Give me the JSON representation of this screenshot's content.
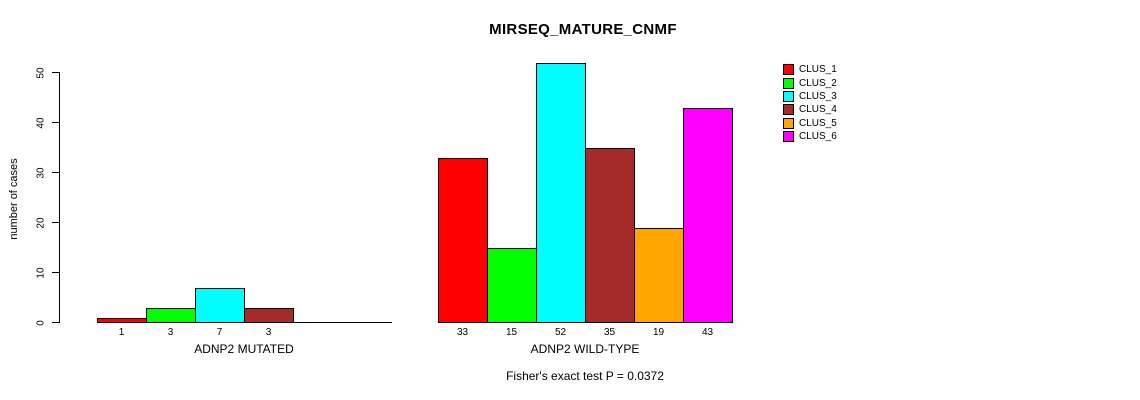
{
  "title": "MIRSEQ_MATURE_CNMF",
  "subtitle": "Fisher's exact test P = 0.0372",
  "chart_data": {
    "type": "bar",
    "title": "MIRSEQ_MATURE_CNMF",
    "ylabel": "number of cases",
    "xlabel": "",
    "ylim": [
      0,
      52
    ],
    "yticks": [
      0,
      10,
      20,
      30,
      40,
      50
    ],
    "grid": false,
    "legend_position": "right",
    "legend": [
      {
        "label": "CLUS_1",
        "color": "#FF0000"
      },
      {
        "label": "CLUS_2",
        "color": "#00FF00"
      },
      {
        "label": "CLUS_3",
        "color": "#00FFFF"
      },
      {
        "label": "CLUS_4",
        "color": "#A52A2A"
      },
      {
        "label": "CLUS_5",
        "color": "#FFA500"
      },
      {
        "label": "CLUS_6",
        "color": "#FF00FF"
      }
    ],
    "groups": [
      {
        "label": "ADNP2 MUTATED",
        "categories": [
          "CLUS_1",
          "CLUS_2",
          "CLUS_3",
          "CLUS_4",
          "CLUS_5",
          "CLUS_6"
        ],
        "values": [
          1,
          3,
          7,
          3,
          0,
          0
        ]
      },
      {
        "label": "ADNP2 WILD-TYPE",
        "categories": [
          "CLUS_1",
          "CLUS_2",
          "CLUS_3",
          "CLUS_4",
          "CLUS_5",
          "CLUS_6"
        ],
        "values": [
          33,
          15,
          52,
          35,
          19,
          43
        ]
      }
    ],
    "annotation": "Fisher's exact test P = 0.0372"
  }
}
